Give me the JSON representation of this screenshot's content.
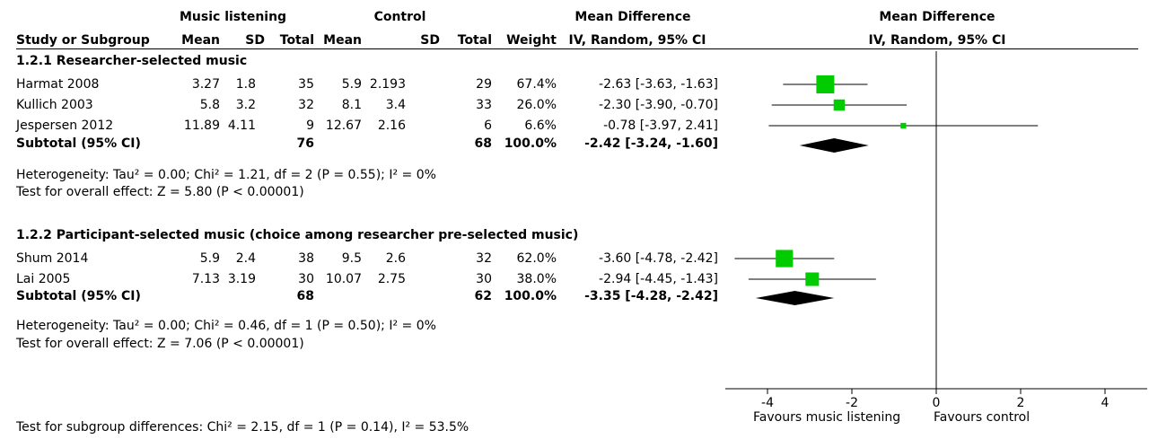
{
  "headers": {
    "music_group": "Music listening",
    "control_group": "Control",
    "md_group": "Mean Difference",
    "plot_group": "Mean Difference",
    "study": "Study or Subgroup",
    "mean": "Mean",
    "sd": "SD",
    "total": "Total",
    "weight": "Weight",
    "method": "IV, Random, 95% CI",
    "plot_method": "IV, Random, 95% CI"
  },
  "subgroups": [
    {
      "title": "1.2.1 Researcher-selected music",
      "studies": [
        {
          "name": "Harmat 2008",
          "m_mean": "3.27",
          "m_sd": "1.8",
          "m_total": "35",
          "c_mean": "5.9",
          "c_sd": "2.193",
          "c_total": "29",
          "weight": "67.4%",
          "ci": "-2.63 [-3.63, -1.63]"
        },
        {
          "name": "Kullich 2003",
          "m_mean": "5.8",
          "m_sd": "3.2",
          "m_total": "32",
          "c_mean": "8.1",
          "c_sd": "3.4",
          "c_total": "33",
          "weight": "26.0%",
          "ci": "-2.30 [-3.90, -0.70]"
        },
        {
          "name": "Jespersen 2012",
          "m_mean": "11.89",
          "m_sd": "4.11",
          "m_total": "9",
          "c_mean": "12.67",
          "c_sd": "2.16",
          "c_total": "6",
          "weight": "6.6%",
          "ci": "-0.78 [-3.97, 2.41]"
        }
      ],
      "subtotal": {
        "label": "Subtotal (95% CI)",
        "m_total": "76",
        "c_total": "68",
        "weight": "100.0%",
        "ci": "-2.42 [-3.24, -1.60]"
      },
      "heterogeneity": "Heterogeneity: Tau² = 0.00; Chi² = 1.21, df = 2 (P = 0.55); I² = 0%",
      "overall": "Test for overall effect: Z = 5.80 (P < 0.00001)"
    },
    {
      "title": "1.2.2 Participant-selected music (choice among researcher pre-selected music)",
      "studies": [
        {
          "name": "Shum 2014",
          "m_mean": "5.9",
          "m_sd": "2.4",
          "m_total": "38",
          "c_mean": "9.5",
          "c_sd": "2.6",
          "c_total": "32",
          "weight": "62.0%",
          "ci": "-3.60 [-4.78, -2.42]"
        },
        {
          "name": "Lai 2005",
          "m_mean": "7.13",
          "m_sd": "3.19",
          "m_total": "30",
          "c_mean": "10.07",
          "c_sd": "2.75",
          "c_total": "30",
          "weight": "38.0%",
          "ci": "-2.94 [-4.45, -1.43]"
        }
      ],
      "subtotal": {
        "label": "Subtotal (95% CI)",
        "m_total": "68",
        "c_total": "62",
        "weight": "100.0%",
        "ci": "-3.35 [-4.28, -2.42]"
      },
      "heterogeneity": "Heterogeneity: Tau² = 0.00; Chi² = 0.46, df = 1 (P = 0.50); I² = 0%",
      "overall": "Test for overall effect: Z = 7.06 (P < 0.00001)"
    }
  ],
  "subgroup_test": "Test for subgroup differences: Chi² = 2.15, df = 1 (P = 0.14), I² = 53.5%",
  "chart_data": {
    "type": "scatter",
    "subtype": "forest",
    "xlim": [
      -5,
      5
    ],
    "xticks": [
      -4,
      -2,
      0,
      2,
      4
    ],
    "tick_labels": [
      "-4",
      "-2",
      "0",
      "2",
      "4"
    ],
    "favours_left": "Favours music listening",
    "favours_right": "Favours control",
    "marker_color": "#00cc00",
    "diamond_color": "#000000",
    "studies": [
      {
        "name": "Harmat 2008",
        "md": -2.63,
        "lo": -3.63,
        "hi": -1.63,
        "weight": 67.4
      },
      {
        "name": "Kullich 2003",
        "md": -2.3,
        "lo": -3.9,
        "hi": -0.7,
        "weight": 26.0
      },
      {
        "name": "Jespersen 2012",
        "md": -0.78,
        "lo": -3.97,
        "hi": 2.41,
        "weight": 6.6
      },
      {
        "name": "Shum 2014",
        "md": -3.6,
        "lo": -4.78,
        "hi": -2.42,
        "weight": 62.0
      },
      {
        "name": "Lai 2005",
        "md": -2.94,
        "lo": -4.45,
        "hi": -1.43,
        "weight": 38.0
      }
    ],
    "subtotals": [
      {
        "name": "Subtotal 1.2.1",
        "md": -2.42,
        "lo": -3.24,
        "hi": -1.6
      },
      {
        "name": "Subtotal 1.2.2",
        "md": -3.35,
        "lo": -4.28,
        "hi": -2.42
      }
    ]
  }
}
